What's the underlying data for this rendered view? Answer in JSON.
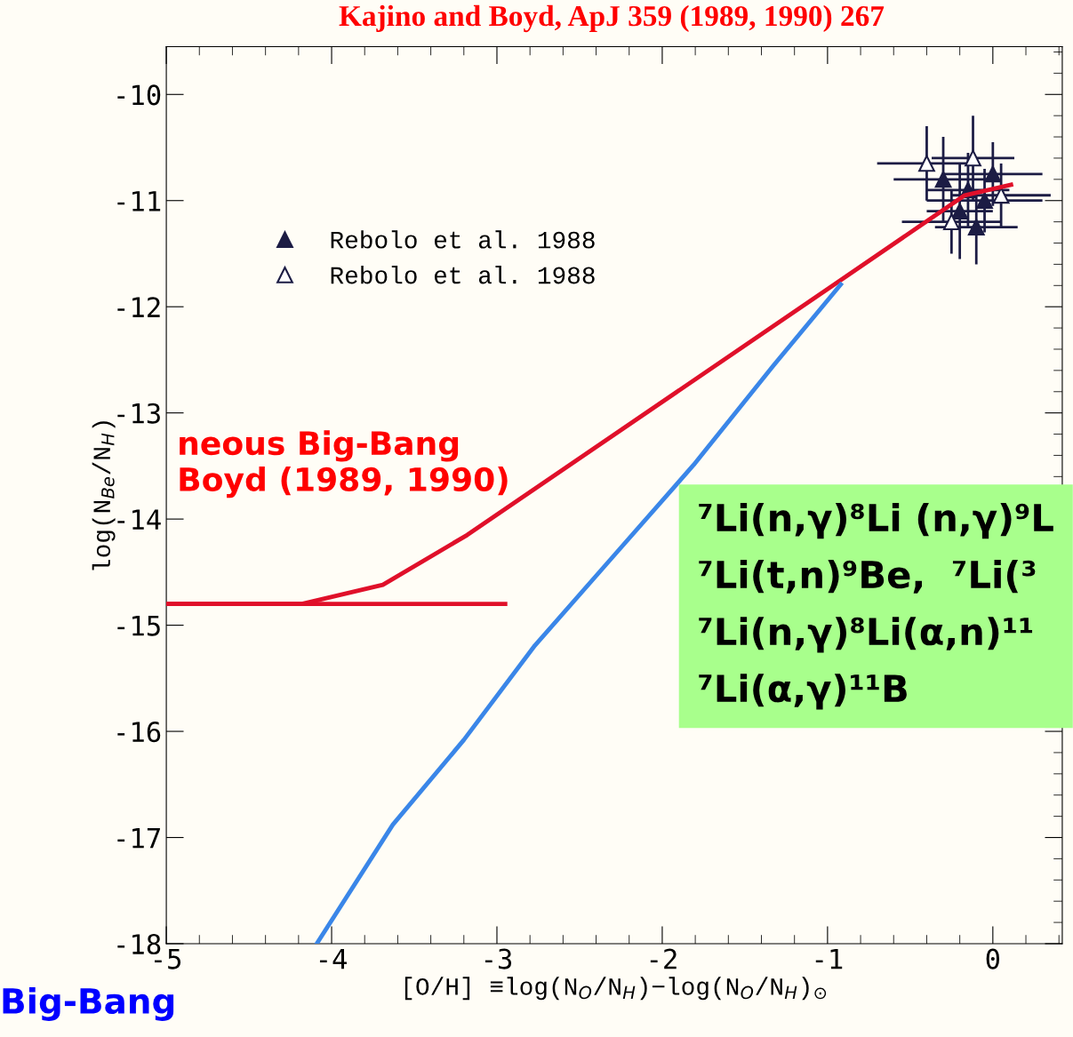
{
  "chart_data": {
    "type": "line",
    "title": "Kajino and Boyd, ApJ 359 (1989, 1990) 267",
    "xlabel": "[O/H] ≡log(N$_{O}$/N$_{H}$)−log(N$_{O}$/N$_{H}$)$_{⊙}$",
    "ylabel": "log(N$_{Be}$/N$_{H}$)",
    "xlim": [
      -5,
      0.42
    ],
    "ylim": [
      -18,
      -9.55
    ],
    "xticks": [
      -5,
      -4,
      -3,
      -2,
      -1,
      0
    ],
    "yticks": [
      -18,
      -17,
      -16,
      -15,
      -14,
      -13,
      -12,
      -11,
      -10
    ],
    "grid": false,
    "legend": "top left",
    "line_style": "solid",
    "marker": "none",
    "series": [
      {
        "color": "#e0102a",
        "x": [
          -5,
          -4.5,
          -4.18,
          -3.69,
          -3.18,
          -0.95,
          -0.17,
          0.11
        ],
        "values": [
          -14.8,
          -14.8,
          -14.8,
          -14.62,
          -14.15,
          -11.78,
          -10.95,
          -10.85
        ]
      },
      {
        "color": "#e0102a",
        "x": [
          -5,
          -2.95
        ],
        "values": [
          -14.8,
          -14.8
        ]
      },
      {
        "color": "#3a86e8",
        "x": [
          -4.09,
          -3.63,
          -3.2,
          -2.77,
          -2.29,
          -1.81,
          -1.33,
          -0.92
        ],
        "values": [
          -18,
          -16.88,
          -16.08,
          -15.19,
          -14.34,
          -13.49,
          -12.56,
          -11.79
        ]
      },
      {
        "type": "scatter",
        "name": "Rebolo et al. 1988",
        "marker": "triangle",
        "color": "#1c1c44",
        "x": [
          -0.3,
          -0.15,
          -0.05,
          -0.2,
          0.0,
          -0.1
        ],
        "values": [
          -10.8,
          -10.9,
          -11.0,
          -11.1,
          -10.75,
          -11.25
        ],
        "errors": [
          0.4,
          0.35,
          0.3,
          0.45,
          0.3,
          0.35
        ],
        "xerrors": [
          0.3,
          0.25,
          0.35,
          0.2,
          0.3,
          0.25
        ]
      },
      {
        "type": "scatter",
        "name": "Rebolo et al. 1988",
        "marker": "triangle",
        "color": "#1c1c44",
        "x": [
          -0.4,
          -0.25,
          0.05,
          -0.12
        ],
        "values": [
          -10.65,
          -11.2,
          -10.95,
          -10.6
        ],
        "errors": [
          0.35,
          0.3,
          0.3,
          0.4
        ],
        "xerrors": [
          0.3,
          0.3,
          0.3,
          0.25
        ]
      }
    ],
    "annotations": [
      "neous Big-Bang\nBoyd (1989, 1990)",
      "Big-Bang",
      "⁷Li(n,γ)⁸Li (n,γ)⁹L\n⁷Li(t,n)⁹Be,  ⁷Li(³\n⁷Li(n,γ)⁸Li(α,n)¹¹\n⁷Li(α,γ)¹¹B"
    ]
  }
}
